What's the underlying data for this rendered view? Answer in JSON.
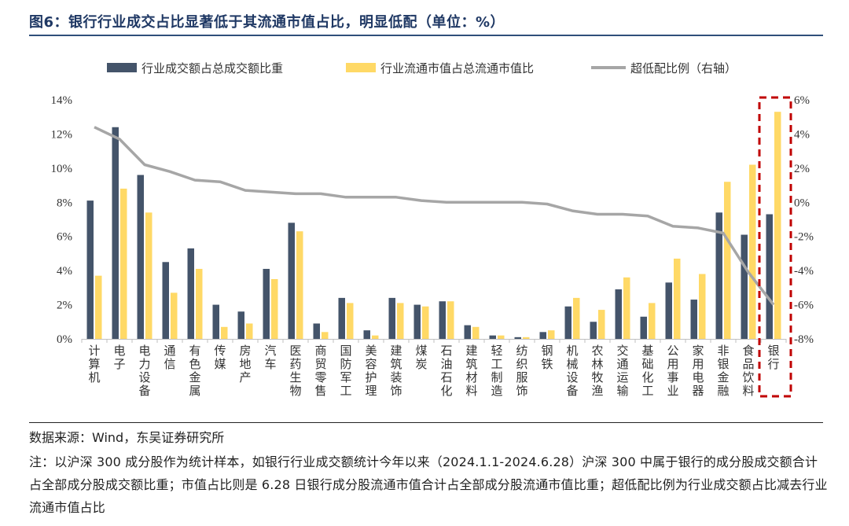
{
  "title": "图6：银行行业成交占比显著低于其流通市值占比，明显低配（单位：%）",
  "source": "数据来源：Wind，东吴证券研究所",
  "note": "注：以沪深 300 成分股作为统计样本，如银行行业成交额统计今年以来（2024.1.1-2024.6.28）沪深 300 中属于银行的成分股成交额合计占全部成分股成交额比重；市值占比则是 6.28 日银行成分股流通市值合计占全部成分股流通市值比重；超低配比例为行业成交额占比减去行业流通市值占比",
  "colors": {
    "turnover": "#44546a",
    "mktcap": "#ffd966",
    "ratio": "#a6a6a6",
    "highlight": "#c00000"
  },
  "chart_data": {
    "type": "bar+line",
    "categories": [
      "计算机",
      "电子",
      "电力设备",
      "通信",
      "有色金属",
      "传媒",
      "房地产",
      "汽车",
      "医药生物",
      "商贸零售",
      "国防军工",
      "美容护理",
      "建筑装饰",
      "煤炭",
      "石油石化",
      "建筑材料",
      "轻工制造",
      "纺织服饰",
      "钢铁",
      "机械设备",
      "农林牧渔",
      "交通运输",
      "基础化工",
      "公用事业",
      "家用电器",
      "非银金融",
      "食品饮料",
      "银行"
    ],
    "series": [
      {
        "name": "行业成交额占总成交额比重",
        "type": "bar",
        "axis": "left",
        "values": [
          8.1,
          12.4,
          9.6,
          4.5,
          5.3,
          2.0,
          1.6,
          4.1,
          6.8,
          0.9,
          2.4,
          0.5,
          2.4,
          2.0,
          2.2,
          0.8,
          0.2,
          0.1,
          0.4,
          1.9,
          1.0,
          2.9,
          1.3,
          3.3,
          2.3,
          7.4,
          6.1,
          7.3
        ]
      },
      {
        "name": "行业流通市值占总流通市值比",
        "type": "bar",
        "axis": "left",
        "values": [
          3.7,
          8.8,
          7.4,
          2.7,
          4.1,
          0.7,
          0.9,
          3.5,
          6.3,
          0.4,
          2.1,
          0.2,
          2.1,
          1.9,
          2.2,
          0.7,
          0.2,
          0.1,
          0.5,
          2.4,
          1.7,
          3.6,
          2.1,
          4.7,
          3.8,
          9.2,
          10.2,
          13.3
        ]
      },
      {
        "name": "超低配比例（右轴）",
        "type": "line",
        "axis": "right",
        "values": [
          4.4,
          3.7,
          2.2,
          1.8,
          1.3,
          1.2,
          0.7,
          0.6,
          0.5,
          0.5,
          0.3,
          0.3,
          0.3,
          0.1,
          0.0,
          0.0,
          0.0,
          0.0,
          -0.1,
          -0.5,
          -0.7,
          -0.7,
          -0.8,
          -1.4,
          -1.5,
          -1.8,
          -4.1,
          -6.0
        ]
      }
    ],
    "y_left": {
      "min": 0,
      "max": 14,
      "step": 2,
      "ticks": [
        "0%",
        "2%",
        "4%",
        "6%",
        "8%",
        "10%",
        "12%",
        "14%"
      ]
    },
    "y_right": {
      "min": -8,
      "max": 6,
      "step": 2,
      "ticks": [
        "-8%",
        "-6%",
        "-4%",
        "-2%",
        "0%",
        "2%",
        "4%",
        "6%"
      ]
    },
    "legend_position": "top",
    "highlight_category": "银行",
    "grid": false
  }
}
